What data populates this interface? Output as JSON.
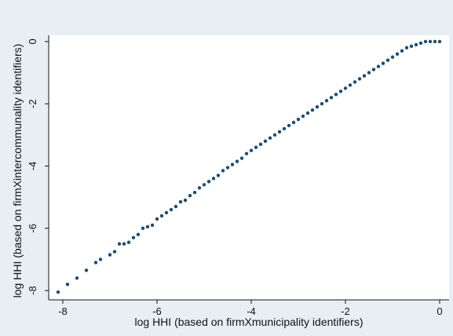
{
  "chart_data": {
    "type": "scatter",
    "title": "",
    "xlabel": "log HHI (based on firmXmunicipality identifiers)",
    "ylabel": "log HHI (based on firmXintercommunality identifiers)",
    "xlim": [
      -8.3,
      0.2
    ],
    "ylim": [
      -8.3,
      0.2
    ],
    "xticks": [
      -8,
      -6,
      -4,
      -2,
      0
    ],
    "yticks": [
      -8,
      -6,
      -4,
      -2,
      0
    ],
    "grid": false,
    "legend": "none",
    "colors": {
      "marker": "#1a4d78",
      "plot_background": "#ffffff",
      "outer_background": "#e8eef2"
    },
    "series": [
      {
        "points": [
          [
            -8.1,
            -8.05
          ],
          [
            -7.9,
            -7.8
          ],
          [
            -7.7,
            -7.6
          ],
          [
            -7.5,
            -7.35
          ],
          [
            -7.3,
            -7.1
          ],
          [
            -7.2,
            -7.0
          ],
          [
            -7.0,
            -6.85
          ],
          [
            -6.9,
            -6.75
          ],
          [
            -6.8,
            -6.5
          ],
          [
            -6.7,
            -6.5
          ],
          [
            -6.6,
            -6.45
          ],
          [
            -6.5,
            -6.3
          ],
          [
            -6.4,
            -6.2
          ],
          [
            -6.3,
            -6.0
          ],
          [
            -6.2,
            -5.95
          ],
          [
            -6.1,
            -5.9
          ],
          [
            -6.0,
            -5.7
          ],
          [
            -5.9,
            -5.6
          ],
          [
            -5.8,
            -5.5
          ],
          [
            -5.7,
            -5.4
          ],
          [
            -5.6,
            -5.3
          ],
          [
            -5.5,
            -5.15
          ],
          [
            -5.4,
            -5.1
          ],
          [
            -5.3,
            -4.95
          ],
          [
            -5.2,
            -4.85
          ],
          [
            -5.1,
            -4.7
          ],
          [
            -5.0,
            -4.6
          ],
          [
            -4.9,
            -4.5
          ],
          [
            -4.8,
            -4.4
          ],
          [
            -4.7,
            -4.3
          ],
          [
            -4.6,
            -4.15
          ],
          [
            -4.5,
            -4.05
          ],
          [
            -4.4,
            -3.95
          ],
          [
            -4.3,
            -3.85
          ],
          [
            -4.2,
            -3.75
          ],
          [
            -4.1,
            -3.6
          ],
          [
            -4.0,
            -3.5
          ],
          [
            -3.9,
            -3.4
          ],
          [
            -3.8,
            -3.3
          ],
          [
            -3.7,
            -3.2
          ],
          [
            -3.6,
            -3.1
          ],
          [
            -3.5,
            -3.0
          ],
          [
            -3.4,
            -2.9
          ],
          [
            -3.3,
            -2.8
          ],
          [
            -3.2,
            -2.7
          ],
          [
            -3.1,
            -2.6
          ],
          [
            -3.0,
            -2.5
          ],
          [
            -2.9,
            -2.4
          ],
          [
            -2.8,
            -2.3
          ],
          [
            -2.7,
            -2.2
          ],
          [
            -2.6,
            -2.1
          ],
          [
            -2.5,
            -2.0
          ],
          [
            -2.4,
            -1.9
          ],
          [
            -2.3,
            -1.8
          ],
          [
            -2.2,
            -1.7
          ],
          [
            -2.1,
            -1.6
          ],
          [
            -2.0,
            -1.5
          ],
          [
            -1.9,
            -1.4
          ],
          [
            -1.8,
            -1.3
          ],
          [
            -1.7,
            -1.2
          ],
          [
            -1.6,
            -1.1
          ],
          [
            -1.5,
            -1.0
          ],
          [
            -1.4,
            -0.9
          ],
          [
            -1.3,
            -0.8
          ],
          [
            -1.2,
            -0.7
          ],
          [
            -1.1,
            -0.6
          ],
          [
            -1.0,
            -0.5
          ],
          [
            -0.9,
            -0.4
          ],
          [
            -0.8,
            -0.3
          ],
          [
            -0.7,
            -0.2
          ],
          [
            -0.6,
            -0.15
          ],
          [
            -0.5,
            -0.1
          ],
          [
            -0.4,
            -0.05
          ],
          [
            -0.3,
            0.0
          ],
          [
            -0.2,
            0.0
          ],
          [
            -0.1,
            0.0
          ],
          [
            0.0,
            0.0
          ]
        ]
      }
    ]
  }
}
